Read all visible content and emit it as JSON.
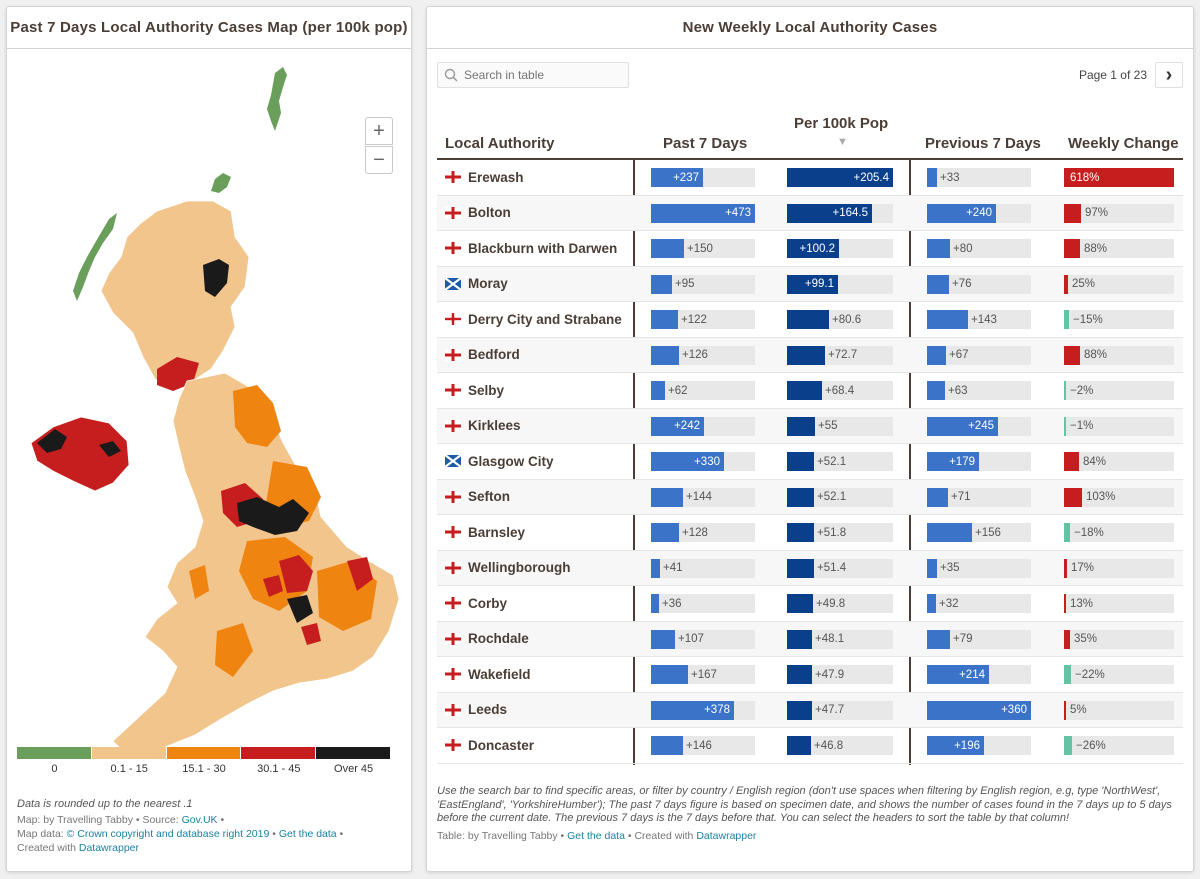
{
  "map": {
    "title": "Past 7 Days Local Authority Cases Map (per 100k pop)",
    "zoom_in": "+",
    "zoom_out": "−",
    "legend": [
      {
        "label": "0",
        "color": "#6a9e5b"
      },
      {
        "label": "0.1 - 15",
        "color": "#f2c58c"
      },
      {
        "label": "15.1 - 30",
        "color": "#f08410"
      },
      {
        "label": "30.1 - 45",
        "color": "#c61e1e"
      },
      {
        "label": "Over 45",
        "color": "#1a1a1a"
      }
    ],
    "note": "Data is rounded up to the nearest .1",
    "byline_prefix": "Map: by Travelling Tabby • Source: ",
    "byline_source": "Gov.UK",
    "byline_bullet": " •",
    "mapdata_prefix": "Map data: ",
    "mapdata_link": "© Crown copyright and database right 2019",
    "sep": " • ",
    "get_data": "Get the data",
    "mapdata_suffix": " •",
    "created_prefix": "Created with ",
    "created_link": "Datawrapper"
  },
  "table": {
    "title": "New Weekly Local Authority Cases",
    "search_placeholder": "Search in table",
    "page_label": "Page 1 of 23",
    "next_icon": "›",
    "headers": {
      "authority": "Local Authority",
      "past7": "Past 7 Days",
      "per100k": "Per 100k Pop",
      "sort_indicator": "▼",
      "prev7": "Previous 7 Days",
      "change": "Weekly Change"
    },
    "colors": {
      "blue": "#3b73c9",
      "darkblue": "#0a3f8c",
      "red": "#c61e1e",
      "teal": "#66c2a5"
    },
    "rows": [
      {
        "name": "Erewash",
        "flag": "england",
        "past7": 237,
        "past7_label": "+237",
        "per100k": 205.4,
        "per100k_label": "+205.4",
        "prev7": 33,
        "prev7_label": "+33",
        "change": 618,
        "change_label": "618%"
      },
      {
        "name": "Bolton",
        "flag": "england",
        "past7": 473,
        "past7_label": "+473",
        "per100k": 164.5,
        "per100k_label": "+164.5",
        "prev7": 240,
        "prev7_label": "+240",
        "change": 97,
        "change_label": "97%"
      },
      {
        "name": "Blackburn with Darwen",
        "flag": "england",
        "past7": 150,
        "past7_label": "+150",
        "per100k": 100.2,
        "per100k_label": "+100.2",
        "prev7": 80,
        "prev7_label": "+80",
        "change": 88,
        "change_label": "88%"
      },
      {
        "name": "Moray",
        "flag": "scotland",
        "past7": 95,
        "past7_label": "+95",
        "per100k": 99.1,
        "per100k_label": "+99.1",
        "prev7": 76,
        "prev7_label": "+76",
        "change": 25,
        "change_label": "25%"
      },
      {
        "name": "Derry City and Strabane",
        "flag": "ni",
        "past7": 122,
        "past7_label": "+122",
        "per100k": 80.6,
        "per100k_label": "+80.6",
        "prev7": 143,
        "prev7_label": "+143",
        "change": -15,
        "change_label": "−15%"
      },
      {
        "name": "Bedford",
        "flag": "england",
        "past7": 126,
        "past7_label": "+126",
        "per100k": 72.7,
        "per100k_label": "+72.7",
        "prev7": 67,
        "prev7_label": "+67",
        "change": 88,
        "change_label": "88%"
      },
      {
        "name": "Selby",
        "flag": "england",
        "past7": 62,
        "past7_label": "+62",
        "per100k": 68.4,
        "per100k_label": "+68.4",
        "prev7": 63,
        "prev7_label": "+63",
        "change": -2,
        "change_label": "−2%"
      },
      {
        "name": "Kirklees",
        "flag": "england",
        "past7": 242,
        "past7_label": "+242",
        "per100k": 55,
        "per100k_label": "+55",
        "prev7": 245,
        "prev7_label": "+245",
        "change": -1,
        "change_label": "−1%"
      },
      {
        "name": "Glasgow City",
        "flag": "scotland",
        "past7": 330,
        "past7_label": "+330",
        "per100k": 52.1,
        "per100k_label": "+52.1",
        "prev7": 179,
        "prev7_label": "+179",
        "change": 84,
        "change_label": "84%"
      },
      {
        "name": "Sefton",
        "flag": "england",
        "past7": 144,
        "past7_label": "+144",
        "per100k": 52.1,
        "per100k_label": "+52.1",
        "prev7": 71,
        "prev7_label": "+71",
        "change": 103,
        "change_label": "103%"
      },
      {
        "name": "Barnsley",
        "flag": "england",
        "past7": 128,
        "past7_label": "+128",
        "per100k": 51.8,
        "per100k_label": "+51.8",
        "prev7": 156,
        "prev7_label": "+156",
        "change": -18,
        "change_label": "−18%"
      },
      {
        "name": "Wellingborough",
        "flag": "england",
        "past7": 41,
        "past7_label": "+41",
        "per100k": 51.4,
        "per100k_label": "+51.4",
        "prev7": 35,
        "prev7_label": "+35",
        "change": 17,
        "change_label": "17%"
      },
      {
        "name": "Corby",
        "flag": "england",
        "past7": 36,
        "past7_label": "+36",
        "per100k": 49.8,
        "per100k_label": "+49.8",
        "prev7": 32,
        "prev7_label": "+32",
        "change": 13,
        "change_label": "13%"
      },
      {
        "name": "Rochdale",
        "flag": "england",
        "past7": 107,
        "past7_label": "+107",
        "per100k": 48.1,
        "per100k_label": "+48.1",
        "prev7": 79,
        "prev7_label": "+79",
        "change": 35,
        "change_label": "35%"
      },
      {
        "name": "Wakefield",
        "flag": "england",
        "past7": 167,
        "past7_label": "+167",
        "per100k": 47.9,
        "per100k_label": "+47.9",
        "prev7": 214,
        "prev7_label": "+214",
        "change": -22,
        "change_label": "−22%"
      },
      {
        "name": "Leeds",
        "flag": "england",
        "past7": 378,
        "past7_label": "+378",
        "per100k": 47.7,
        "per100k_label": "+47.7",
        "prev7": 360,
        "prev7_label": "+360",
        "change": 5,
        "change_label": "5%"
      },
      {
        "name": "Doncaster",
        "flag": "england",
        "past7": 146,
        "past7_label": "+146",
        "per100k": 46.8,
        "per100k_label": "+46.8",
        "prev7": 196,
        "prev7_label": "+196",
        "change": -26,
        "change_label": "−26%"
      }
    ],
    "notes": "Use the search bar to find specific areas, or filter by country / English region (don't use spaces when filtering by English region, e.g, type 'NorthWest', 'EastEngland', 'YorkshireHumber'); The past 7 days figure is based on specimen date, and shows the number of cases found in the 7 days up to 5 days before the current date. The previous 7 days is the 7 days before that. You can select the headers to sort the table by that column!",
    "byline_prefix": "Table: by Travelling Tabby • ",
    "get_data": "Get the data",
    "created_prefix": " • Created with ",
    "created_link": "Datawrapper"
  }
}
